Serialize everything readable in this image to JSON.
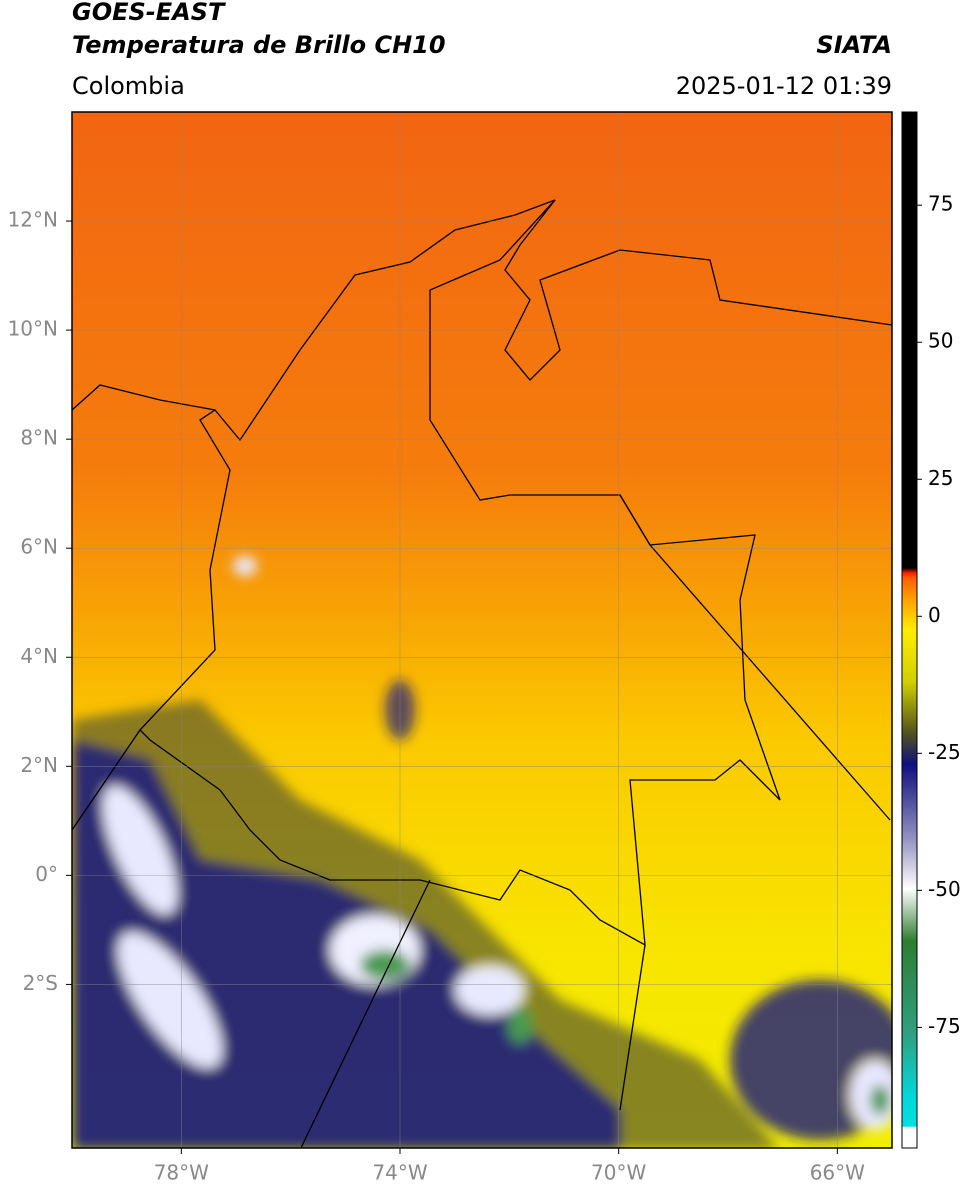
{
  "header": {
    "satellite": "GOES-EAST",
    "product": "Temperatura de Brillo CH10",
    "agency": "SIATA",
    "region": "Colombia",
    "datetime": "2025-01-12 01:39"
  },
  "map": {
    "lonlim": [
      -80,
      -65
    ],
    "latlim": [
      -5,
      14
    ],
    "lon_ticks": [
      {
        "value": -78,
        "label": "78°W"
      },
      {
        "value": -74,
        "label": "74°W"
      },
      {
        "value": -70,
        "label": "70°W"
      },
      {
        "value": -66,
        "label": "66°W"
      }
    ],
    "lat_ticks": [
      {
        "value": 12,
        "label": "12°N"
      },
      {
        "value": 10,
        "label": "10°N"
      },
      {
        "value": 8,
        "label": "8°N"
      },
      {
        "value": 6,
        "label": "6°N"
      },
      {
        "value": 4,
        "label": "4°N"
      },
      {
        "value": 2,
        "label": "2°N"
      },
      {
        "value": 0,
        "label": "0°"
      },
      {
        "value": -2,
        "label": "2°S"
      }
    ]
  },
  "colorbar": {
    "clim": [
      -97,
      92
    ],
    "ticks": [
      75,
      50,
      25,
      0,
      -25,
      -50,
      -75
    ]
  }
}
